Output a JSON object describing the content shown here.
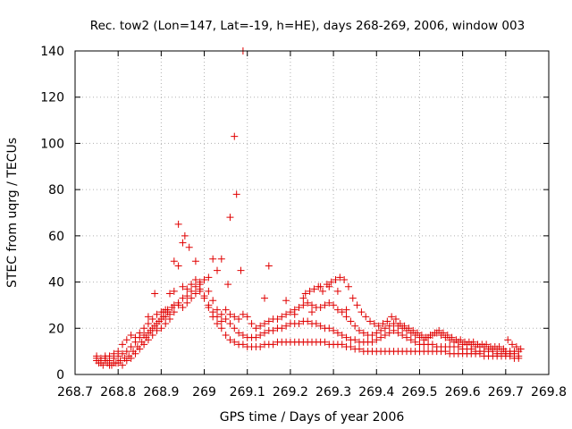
{
  "chart_data": {
    "type": "scatter",
    "title": "Rec. tow2 (Lon=147, Lat=-19, h=HE), days 268-269, 2006, window 003",
    "xlabel": "GPS time / Days of year 2006",
    "ylabel": "STEC from uqrg / TECUs",
    "xlim": [
      268.7,
      269.8
    ],
    "ylim": [
      0,
      140
    ],
    "xticks": [
      268.7,
      268.8,
      268.9,
      269.0,
      269.1,
      269.2,
      269.3,
      269.4,
      269.5,
      269.6,
      269.7,
      269.8
    ],
    "xtick_labels": [
      "268.7",
      "268.8",
      "268.9",
      "269",
      "269.1",
      "269.2",
      "269.3",
      "269.4",
      "269.5",
      "269.6",
      "269.7",
      "269.8"
    ],
    "yticks": [
      0,
      20,
      40,
      60,
      80,
      100,
      120,
      140
    ],
    "ytick_labels": [
      "0",
      "20",
      "40",
      "60",
      "80",
      "100",
      "120",
      "140"
    ],
    "grid": true,
    "marker": "+",
    "color": "#e00000",
    "points": [
      [
        268.75,
        7
      ],
      [
        268.76,
        5
      ],
      [
        268.77,
        6
      ],
      [
        268.78,
        4
      ],
      [
        268.79,
        5
      ],
      [
        268.8,
        5
      ],
      [
        268.81,
        4
      ],
      [
        268.82,
        6
      ],
      [
        268.83,
        7
      ],
      [
        268.84,
        9
      ],
      [
        268.85,
        11
      ],
      [
        268.86,
        13
      ],
      [
        268.87,
        15
      ],
      [
        268.88,
        17
      ],
      [
        268.89,
        19
      ],
      [
        268.9,
        20
      ],
      [
        268.91,
        22
      ],
      [
        268.92,
        24
      ],
      [
        268.93,
        27
      ],
      [
        268.94,
        30
      ],
      [
        268.95,
        29
      ],
      [
        268.96,
        31
      ],
      [
        268.97,
        33
      ],
      [
        268.98,
        35
      ],
      [
        268.99,
        36
      ],
      [
        269.0,
        34
      ],
      [
        269.01,
        30
      ],
      [
        269.02,
        25
      ],
      [
        269.03,
        22
      ],
      [
        269.04,
        20
      ],
      [
        269.05,
        17
      ],
      [
        269.06,
        15
      ],
      [
        269.07,
        14
      ],
      [
        269.08,
        13
      ],
      [
        269.09,
        13
      ],
      [
        269.1,
        12
      ],
      [
        269.11,
        12
      ],
      [
        269.12,
        12
      ],
      [
        269.13,
        12
      ],
      [
        269.14,
        13
      ],
      [
        269.15,
        13
      ],
      [
        269.16,
        13
      ],
      [
        269.17,
        14
      ],
      [
        269.18,
        14
      ],
      [
        269.19,
        14
      ],
      [
        269.2,
        14
      ],
      [
        269.21,
        14
      ],
      [
        269.22,
        14
      ],
      [
        269.23,
        14
      ],
      [
        269.24,
        14
      ],
      [
        269.25,
        14
      ],
      [
        269.26,
        14
      ],
      [
        269.27,
        14
      ],
      [
        269.28,
        14
      ],
      [
        269.29,
        13
      ],
      [
        269.3,
        13
      ],
      [
        269.31,
        13
      ],
      [
        269.32,
        13
      ],
      [
        269.33,
        12
      ],
      [
        269.34,
        12
      ],
      [
        269.35,
        11
      ],
      [
        269.36,
        11
      ],
      [
        269.37,
        10
      ],
      [
        269.38,
        10
      ],
      [
        269.39,
        10
      ],
      [
        269.4,
        10
      ],
      [
        269.41,
        10
      ],
      [
        269.42,
        10
      ],
      [
        269.43,
        10
      ],
      [
        269.44,
        10
      ],
      [
        269.45,
        10
      ],
      [
        269.46,
        10
      ],
      [
        269.47,
        10
      ],
      [
        269.48,
        10
      ],
      [
        269.49,
        10
      ],
      [
        269.5,
        10
      ],
      [
        269.51,
        10
      ],
      [
        269.52,
        10
      ],
      [
        269.53,
        10
      ],
      [
        269.54,
        10
      ],
      [
        269.55,
        10
      ],
      [
        269.56,
        10
      ],
      [
        269.57,
        9
      ],
      [
        269.58,
        9
      ],
      [
        269.59,
        9
      ],
      [
        269.6,
        9
      ],
      [
        269.61,
        9
      ],
      [
        269.62,
        9
      ],
      [
        269.63,
        9
      ],
      [
        269.64,
        9
      ],
      [
        269.65,
        8
      ],
      [
        269.66,
        8
      ],
      [
        269.67,
        8
      ],
      [
        269.68,
        8
      ],
      [
        269.69,
        8
      ],
      [
        269.7,
        8
      ],
      [
        269.71,
        8
      ],
      [
        269.72,
        7
      ],
      [
        269.73,
        7
      ],
      [
        268.75,
        6
      ],
      [
        268.76,
        7
      ],
      [
        268.77,
        8
      ],
      [
        268.78,
        6
      ],
      [
        268.79,
        7
      ],
      [
        268.8,
        8
      ],
      [
        268.81,
        9
      ],
      [
        268.82,
        10
      ],
      [
        268.83,
        12
      ],
      [
        268.84,
        14
      ],
      [
        268.85,
        16
      ],
      [
        268.86,
        17
      ],
      [
        268.87,
        18
      ],
      [
        268.88,
        20
      ],
      [
        268.89,
        22
      ],
      [
        268.9,
        24
      ],
      [
        268.91,
        25
      ],
      [
        268.92,
        26
      ],
      [
        268.93,
        30
      ],
      [
        268.94,
        31
      ],
      [
        268.95,
        33
      ],
      [
        268.96,
        34
      ],
      [
        268.97,
        36
      ],
      [
        268.98,
        38
      ],
      [
        268.99,
        39
      ],
      [
        269.0,
        41
      ],
      [
        269.01,
        36
      ],
      [
        269.02,
        32
      ],
      [
        269.03,
        28
      ],
      [
        269.04,
        26
      ],
      [
        269.05,
        24
      ],
      [
        269.06,
        22
      ],
      [
        269.07,
        20
      ],
      [
        269.08,
        18
      ],
      [
        269.09,
        17
      ],
      [
        269.1,
        16
      ],
      [
        269.11,
        16
      ],
      [
        269.12,
        16
      ],
      [
        269.13,
        17
      ],
      [
        269.14,
        18
      ],
      [
        269.15,
        19
      ],
      [
        269.16,
        19
      ],
      [
        269.17,
        20
      ],
      [
        269.18,
        20
      ],
      [
        269.19,
        21
      ],
      [
        269.2,
        22
      ],
      [
        269.21,
        22
      ],
      [
        269.22,
        22
      ],
      [
        269.23,
        23
      ],
      [
        269.24,
        23
      ],
      [
        269.25,
        22
      ],
      [
        269.26,
        22
      ],
      [
        269.27,
        21
      ],
      [
        269.28,
        20
      ],
      [
        269.29,
        20
      ],
      [
        269.3,
        19
      ],
      [
        269.31,
        18
      ],
      [
        269.32,
        17
      ],
      [
        269.33,
        16
      ],
      [
        269.34,
        15
      ],
      [
        269.35,
        15
      ],
      [
        269.36,
        14
      ],
      [
        269.37,
        14
      ],
      [
        269.38,
        14
      ],
      [
        269.39,
        14
      ],
      [
        269.4,
        15
      ],
      [
        269.41,
        16
      ],
      [
        269.42,
        17
      ],
      [
        269.43,
        18
      ],
      [
        269.44,
        19
      ],
      [
        269.45,
        18
      ],
      [
        269.46,
        17
      ],
      [
        269.47,
        16
      ],
      [
        269.48,
        15
      ],
      [
        269.49,
        14
      ],
      [
        269.5,
        13
      ],
      [
        269.51,
        13
      ],
      [
        269.52,
        13
      ],
      [
        269.53,
        13
      ],
      [
        269.54,
        12
      ],
      [
        269.55,
        12
      ],
      [
        269.56,
        12
      ],
      [
        269.57,
        12
      ],
      [
        269.58,
        12
      ],
      [
        269.59,
        12
      ],
      [
        269.6,
        11
      ],
      [
        269.61,
        11
      ],
      [
        269.62,
        11
      ],
      [
        269.63,
        10
      ],
      [
        269.64,
        10
      ],
      [
        269.65,
        10
      ],
      [
        269.66,
        10
      ],
      [
        269.67,
        10
      ],
      [
        269.68,
        9
      ],
      [
        269.69,
        9
      ],
      [
        269.7,
        9
      ],
      [
        269.71,
        9
      ],
      [
        269.72,
        9
      ],
      [
        269.73,
        8
      ],
      [
        268.75,
        8
      ],
      [
        268.76,
        6
      ],
      [
        268.77,
        7
      ],
      [
        268.78,
        8
      ],
      [
        268.79,
        9
      ],
      [
        268.8,
        10
      ],
      [
        268.81,
        13
      ],
      [
        268.82,
        15
      ],
      [
        268.83,
        17
      ],
      [
        268.84,
        16
      ],
      [
        268.85,
        18
      ],
      [
        268.86,
        20
      ],
      [
        268.87,
        22
      ],
      [
        268.88,
        24
      ],
      [
        268.89,
        26
      ],
      [
        268.9,
        27
      ],
      [
        268.91,
        28
      ],
      [
        268.92,
        35
      ],
      [
        268.93,
        36
      ],
      [
        268.94,
        47
      ],
      [
        268.95,
        38
      ],
      [
        268.96,
        37
      ],
      [
        268.97,
        39
      ],
      [
        268.98,
        41
      ],
      [
        268.99,
        40
      ],
      [
        269.0,
        33
      ],
      [
        269.01,
        29
      ],
      [
        269.02,
        27
      ],
      [
        269.03,
        25
      ],
      [
        269.04,
        23
      ],
      [
        269.05,
        28
      ],
      [
        269.06,
        26
      ],
      [
        269.07,
        25
      ],
      [
        269.08,
        24
      ],
      [
        269.09,
        26
      ],
      [
        269.1,
        25
      ],
      [
        269.11,
        22
      ],
      [
        269.12,
        20
      ],
      [
        269.13,
        21
      ],
      [
        269.14,
        22
      ],
      [
        269.15,
        23
      ],
      [
        269.16,
        24
      ],
      [
        269.17,
        24
      ],
      [
        269.18,
        25
      ],
      [
        269.19,
        26
      ],
      [
        269.2,
        27
      ],
      [
        269.21,
        28
      ],
      [
        269.22,
        29
      ],
      [
        269.23,
        30
      ],
      [
        269.24,
        31
      ],
      [
        269.25,
        30
      ],
      [
        269.26,
        29
      ],
      [
        269.27,
        29
      ],
      [
        269.28,
        30
      ],
      [
        269.29,
        31
      ],
      [
        269.3,
        30
      ],
      [
        269.31,
        28
      ],
      [
        269.32,
        27
      ],
      [
        269.33,
        25
      ],
      [
        269.34,
        23
      ],
      [
        269.35,
        21
      ],
      [
        269.36,
        19
      ],
      [
        269.37,
        18
      ],
      [
        269.38,
        17
      ],
      [
        269.39,
        17
      ],
      [
        269.4,
        18
      ],
      [
        269.41,
        19
      ],
      [
        269.42,
        20
      ],
      [
        269.43,
        21
      ],
      [
        269.44,
        22
      ],
      [
        269.45,
        21
      ],
      [
        269.46,
        20
      ],
      [
        269.47,
        19
      ],
      [
        269.48,
        18
      ],
      [
        269.49,
        17
      ],
      [
        269.5,
        16
      ],
      [
        269.51,
        15
      ],
      [
        269.52,
        16
      ],
      [
        269.53,
        17
      ],
      [
        269.54,
        18
      ],
      [
        269.55,
        17
      ],
      [
        269.56,
        16
      ],
      [
        269.57,
        15
      ],
      [
        269.58,
        14
      ],
      [
        269.59,
        14
      ],
      [
        269.6,
        13
      ],
      [
        269.61,
        13
      ],
      [
        269.62,
        13
      ],
      [
        269.63,
        12
      ],
      [
        269.64,
        12
      ],
      [
        269.65,
        12
      ],
      [
        269.66,
        11
      ],
      [
        269.67,
        11
      ],
      [
        269.68,
        11
      ],
      [
        269.69,
        10
      ],
      [
        269.7,
        10
      ],
      [
        269.71,
        10
      ],
      [
        269.72,
        10
      ],
      [
        269.73,
        10
      ],
      [
        268.755,
        5
      ],
      [
        268.765,
        4
      ],
      [
        268.775,
        5
      ],
      [
        268.785,
        4
      ],
      [
        268.795,
        5
      ],
      [
        268.805,
        6
      ],
      [
        268.815,
        7
      ],
      [
        268.825,
        8
      ],
      [
        268.835,
        10
      ],
      [
        268.845,
        12
      ],
      [
        268.855,
        14
      ],
      [
        268.865,
        16
      ],
      [
        268.875,
        19
      ],
      [
        268.885,
        21
      ],
      [
        268.895,
        23
      ],
      [
        268.905,
        25
      ],
      [
        268.915,
        27
      ],
      [
        268.925,
        29
      ],
      [
        269.235,
        35
      ],
      [
        269.245,
        36
      ],
      [
        269.255,
        37
      ],
      [
        269.265,
        38
      ],
      [
        269.275,
        36
      ],
      [
        269.285,
        39
      ],
      [
        269.295,
        40
      ],
      [
        269.305,
        41
      ],
      [
        269.315,
        42
      ],
      [
        269.325,
        41
      ],
      [
        269.335,
        38
      ],
      [
        269.345,
        33
      ],
      [
        269.355,
        30
      ],
      [
        269.365,
        27
      ],
      [
        269.375,
        25
      ],
      [
        269.385,
        23
      ],
      [
        269.395,
        22
      ],
      [
        269.405,
        21
      ],
      [
        269.415,
        22
      ],
      [
        269.425,
        23
      ],
      [
        269.435,
        25
      ],
      [
        269.445,
        24
      ],
      [
        269.455,
        22
      ],
      [
        269.465,
        21
      ],
      [
        269.475,
        20
      ],
      [
        269.485,
        19
      ],
      [
        269.495,
        18
      ],
      [
        269.505,
        17
      ],
      [
        269.515,
        16
      ],
      [
        269.525,
        17
      ],
      [
        269.535,
        18
      ],
      [
        269.545,
        19
      ],
      [
        269.555,
        18
      ],
      [
        269.565,
        17
      ],
      [
        269.575,
        16
      ],
      [
        269.585,
        15
      ],
      [
        269.595,
        15
      ],
      [
        269.605,
        14
      ],
      [
        269.615,
        14
      ],
      [
        269.625,
        14
      ],
      [
        269.635,
        13
      ],
      [
        269.645,
        13
      ],
      [
        269.655,
        13
      ],
      [
        269.665,
        12
      ],
      [
        269.675,
        12
      ],
      [
        269.685,
        12
      ],
      [
        269.695,
        11
      ],
      [
        269.705,
        15
      ],
      [
        269.715,
        13
      ],
      [
        269.725,
        12
      ],
      [
        269.735,
        11
      ],
      [
        268.87,
        25
      ],
      [
        268.885,
        35
      ],
      [
        268.905,
        27
      ],
      [
        268.915,
        28
      ],
      [
        268.93,
        49
      ],
      [
        268.94,
        65
      ],
      [
        268.95,
        57
      ],
      [
        268.955,
        60
      ],
      [
        268.965,
        55
      ],
      [
        268.98,
        49
      ],
      [
        268.99,
        37
      ],
      [
        269.01,
        42
      ],
      [
        269.02,
        50
      ],
      [
        269.03,
        45
      ],
      [
        269.04,
        50
      ],
      [
        269.055,
        39
      ],
      [
        269.06,
        68
      ],
      [
        269.07,
        103
      ],
      [
        269.075,
        78
      ],
      [
        269.085,
        45
      ],
      [
        269.09,
        140
      ],
      [
        269.14,
        33
      ],
      [
        269.15,
        47
      ],
      [
        269.19,
        32
      ],
      [
        269.21,
        26
      ],
      [
        269.23,
        33
      ],
      [
        269.25,
        27
      ],
      [
        269.27,
        38
      ],
      [
        269.29,
        38
      ],
      [
        269.31,
        36
      ],
      [
        269.33,
        28
      ]
    ]
  }
}
